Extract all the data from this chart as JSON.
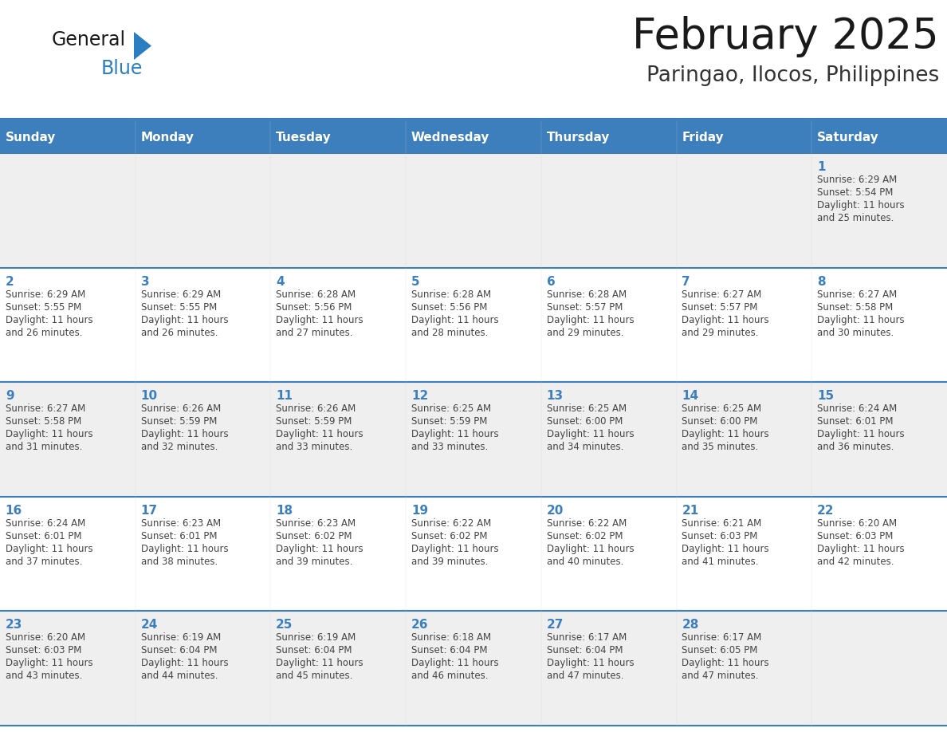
{
  "title": "February 2025",
  "subtitle": "Paringao, Ilocos, Philippines",
  "header_bg": "#3D7EBD",
  "header_text_color": "#FFFFFF",
  "weekdays": [
    "Sunday",
    "Monday",
    "Tuesday",
    "Wednesday",
    "Thursday",
    "Friday",
    "Saturday"
  ],
  "cell_border_color": "#3D7EBD",
  "day_text_color": "#3D7EBD",
  "info_text_color": "#444444",
  "title_color": "#1A1A1A",
  "subtitle_color": "#333333",
  "row_colors": [
    "#EFEFEF",
    "#FFFFFF",
    "#EFEFEF",
    "#FFFFFF",
    "#EFEFEF"
  ],
  "days": [
    {
      "day": 1,
      "col": 6,
      "row": 0,
      "sunrise": "6:29 AM",
      "sunset": "5:54 PM",
      "daylight": "11 hours",
      "daylight2": "and 25 minutes."
    },
    {
      "day": 2,
      "col": 0,
      "row": 1,
      "sunrise": "6:29 AM",
      "sunset": "5:55 PM",
      "daylight": "11 hours",
      "daylight2": "and 26 minutes."
    },
    {
      "day": 3,
      "col": 1,
      "row": 1,
      "sunrise": "6:29 AM",
      "sunset": "5:55 PM",
      "daylight": "11 hours",
      "daylight2": "and 26 minutes."
    },
    {
      "day": 4,
      "col": 2,
      "row": 1,
      "sunrise": "6:28 AM",
      "sunset": "5:56 PM",
      "daylight": "11 hours",
      "daylight2": "and 27 minutes."
    },
    {
      "day": 5,
      "col": 3,
      "row": 1,
      "sunrise": "6:28 AM",
      "sunset": "5:56 PM",
      "daylight": "11 hours",
      "daylight2": "and 28 minutes."
    },
    {
      "day": 6,
      "col": 4,
      "row": 1,
      "sunrise": "6:28 AM",
      "sunset": "5:57 PM",
      "daylight": "11 hours",
      "daylight2": "and 29 minutes."
    },
    {
      "day": 7,
      "col": 5,
      "row": 1,
      "sunrise": "6:27 AM",
      "sunset": "5:57 PM",
      "daylight": "11 hours",
      "daylight2": "and 29 minutes."
    },
    {
      "day": 8,
      "col": 6,
      "row": 1,
      "sunrise": "6:27 AM",
      "sunset": "5:58 PM",
      "daylight": "11 hours",
      "daylight2": "and 30 minutes."
    },
    {
      "day": 9,
      "col": 0,
      "row": 2,
      "sunrise": "6:27 AM",
      "sunset": "5:58 PM",
      "daylight": "11 hours",
      "daylight2": "and 31 minutes."
    },
    {
      "day": 10,
      "col": 1,
      "row": 2,
      "sunrise": "6:26 AM",
      "sunset": "5:59 PM",
      "daylight": "11 hours",
      "daylight2": "and 32 minutes."
    },
    {
      "day": 11,
      "col": 2,
      "row": 2,
      "sunrise": "6:26 AM",
      "sunset": "5:59 PM",
      "daylight": "11 hours",
      "daylight2": "and 33 minutes."
    },
    {
      "day": 12,
      "col": 3,
      "row": 2,
      "sunrise": "6:25 AM",
      "sunset": "5:59 PM",
      "daylight": "11 hours",
      "daylight2": "and 33 minutes."
    },
    {
      "day": 13,
      "col": 4,
      "row": 2,
      "sunrise": "6:25 AM",
      "sunset": "6:00 PM",
      "daylight": "11 hours",
      "daylight2": "and 34 minutes."
    },
    {
      "day": 14,
      "col": 5,
      "row": 2,
      "sunrise": "6:25 AM",
      "sunset": "6:00 PM",
      "daylight": "11 hours",
      "daylight2": "and 35 minutes."
    },
    {
      "day": 15,
      "col": 6,
      "row": 2,
      "sunrise": "6:24 AM",
      "sunset": "6:01 PM",
      "daylight": "11 hours",
      "daylight2": "and 36 minutes."
    },
    {
      "day": 16,
      "col": 0,
      "row": 3,
      "sunrise": "6:24 AM",
      "sunset": "6:01 PM",
      "daylight": "11 hours",
      "daylight2": "and 37 minutes."
    },
    {
      "day": 17,
      "col": 1,
      "row": 3,
      "sunrise": "6:23 AM",
      "sunset": "6:01 PM",
      "daylight": "11 hours",
      "daylight2": "and 38 minutes."
    },
    {
      "day": 18,
      "col": 2,
      "row": 3,
      "sunrise": "6:23 AM",
      "sunset": "6:02 PM",
      "daylight": "11 hours",
      "daylight2": "and 39 minutes."
    },
    {
      "day": 19,
      "col": 3,
      "row": 3,
      "sunrise": "6:22 AM",
      "sunset": "6:02 PM",
      "daylight": "11 hours",
      "daylight2": "and 39 minutes."
    },
    {
      "day": 20,
      "col": 4,
      "row": 3,
      "sunrise": "6:22 AM",
      "sunset": "6:02 PM",
      "daylight": "11 hours",
      "daylight2": "and 40 minutes."
    },
    {
      "day": 21,
      "col": 5,
      "row": 3,
      "sunrise": "6:21 AM",
      "sunset": "6:03 PM",
      "daylight": "11 hours",
      "daylight2": "and 41 minutes."
    },
    {
      "day": 22,
      "col": 6,
      "row": 3,
      "sunrise": "6:20 AM",
      "sunset": "6:03 PM",
      "daylight": "11 hours",
      "daylight2": "and 42 minutes."
    },
    {
      "day": 23,
      "col": 0,
      "row": 4,
      "sunrise": "6:20 AM",
      "sunset": "6:03 PM",
      "daylight": "11 hours",
      "daylight2": "and 43 minutes."
    },
    {
      "day": 24,
      "col": 1,
      "row": 4,
      "sunrise": "6:19 AM",
      "sunset": "6:04 PM",
      "daylight": "11 hours",
      "daylight2": "and 44 minutes."
    },
    {
      "day": 25,
      "col": 2,
      "row": 4,
      "sunrise": "6:19 AM",
      "sunset": "6:04 PM",
      "daylight": "11 hours",
      "daylight2": "and 45 minutes."
    },
    {
      "day": 26,
      "col": 3,
      "row": 4,
      "sunrise": "6:18 AM",
      "sunset": "6:04 PM",
      "daylight": "11 hours",
      "daylight2": "and 46 minutes."
    },
    {
      "day": 27,
      "col": 4,
      "row": 4,
      "sunrise": "6:17 AM",
      "sunset": "6:04 PM",
      "daylight": "11 hours",
      "daylight2": "and 47 minutes."
    },
    {
      "day": 28,
      "col": 5,
      "row": 4,
      "sunrise": "6:17 AM",
      "sunset": "6:05 PM",
      "daylight": "11 hours",
      "daylight2": "and 47 minutes."
    }
  ],
  "num_rows": 5,
  "num_cols": 7,
  "logo_text_general": "General",
  "logo_text_blue": "Blue",
  "logo_general_color": "#1A1A1A",
  "logo_blue_color": "#2B7EC1",
  "logo_triangle_color": "#2B7EC1"
}
